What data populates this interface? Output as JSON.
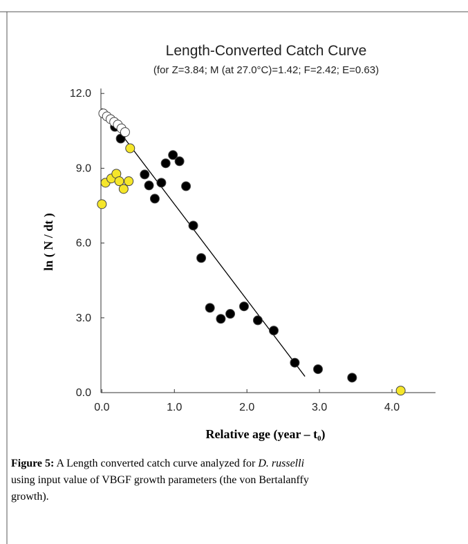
{
  "chart_data": {
    "type": "scatter",
    "title": "Length-Converted Catch Curve",
    "subtitle": "(for Z=3.84; M (at 27.0°C)=1.42; F=2.42; E=0.63)",
    "xlabel": "Relative age (year – t₀)",
    "ylabel": "ln ( N / dt )",
    "xlim": [
      -0.07,
      4.6
    ],
    "ylim": [
      0,
      12.2
    ],
    "xticks": [
      {
        "value": 0,
        "label": "0.0"
      },
      {
        "value": 1,
        "label": "1.0"
      },
      {
        "value": 2,
        "label": "2.0"
      },
      {
        "value": 3,
        "label": "3.0"
      },
      {
        "value": 4,
        "label": "4.0"
      }
    ],
    "yticks": [
      {
        "value": 0,
        "label": "0.0"
      },
      {
        "value": 3,
        "label": "3.0"
      },
      {
        "value": 6,
        "label": "6.0"
      },
      {
        "value": 9,
        "label": "9.0"
      },
      {
        "value": 12,
        "label": "12.0"
      }
    ],
    "series": [
      {
        "color": "#000000",
        "x": [
          0.18,
          0.26,
          0.59,
          0.65,
          0.73,
          0.82,
          0.88,
          0.98,
          1.07,
          1.16,
          1.26,
          1.37,
          1.49,
          1.64,
          1.77,
          1.96,
          2.15,
          2.37,
          2.66,
          2.98,
          3.45
        ],
        "values": [
          10.66,
          10.19,
          8.75,
          8.31,
          7.78,
          8.42,
          9.2,
          9.53,
          9.28,
          8.28,
          6.7,
          5.4,
          3.4,
          2.96,
          3.16,
          3.46,
          2.9,
          2.49,
          1.2,
          0.94,
          0.6
        ]
      },
      {
        "color": "#f5e62a",
        "x": [
          0.0,
          0.05,
          0.13,
          0.2,
          0.24,
          0.3,
          0.37,
          0.39,
          4.12
        ],
        "values": [
          7.56,
          8.42,
          8.59,
          8.78,
          8.48,
          8.17,
          8.48,
          9.8,
          0.08
        ]
      },
      {
        "color": "#ffffff",
        "x": [
          0.02,
          0.07,
          0.12,
          0.17,
          0.22,
          0.27,
          0.32
        ],
        "values": [
          11.2,
          11.08,
          10.97,
          10.86,
          10.75,
          10.6,
          10.45
        ]
      }
    ],
    "fit_line": {
      "color": "#000000",
      "x": [
        0.0,
        2.8
      ],
      "values": [
        11.4,
        0.65
      ]
    }
  },
  "caption": {
    "label": "Figure 5:",
    "line1": "A Length converted catch curve analyzed for",
    "species": "D. russelli",
    "line2": "using input value of VBGF growth parameters (the von Bertalanffy",
    "line3": "growth)."
  }
}
